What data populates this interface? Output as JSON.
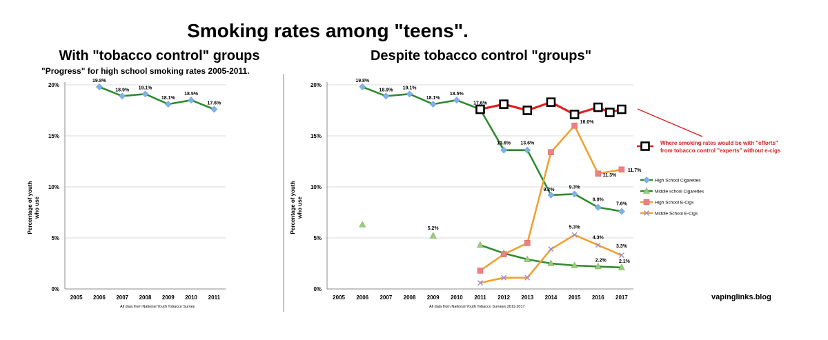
{
  "page": {
    "title": "Smoking rates among \"teens\".",
    "left_heading": "With \"tobacco control\" groups",
    "right_heading": "Despite tobacco control \"groups\"",
    "watermark": "vapinglinks.blog",
    "divider_color": "#999999"
  },
  "chart_data": [
    {
      "type": "line",
      "title": "\"Progress\" for high school smoking rates 2005-2011.",
      "ylabel": "Percentage of youth who use",
      "ylabel_lines": [
        "Percentage of youth",
        "who use"
      ],
      "xlabel": "",
      "source_note": "All data from  National Youth Tobacco Survey",
      "categories": [
        "2005",
        "2006",
        "2007",
        "2008",
        "2009",
        "2010",
        "2011"
      ],
      "y_ticks": [
        "0%",
        "5%",
        "10%",
        "15%",
        "20%"
      ],
      "ylim": [
        0,
        20
      ],
      "grid": true,
      "legend": "none",
      "series": [
        {
          "color": "#2e8b2e",
          "marker": "diamond",
          "marker_color": "#7fb2e5",
          "points": [
            {
              "x": "2006",
              "y": 19.8,
              "label": "19.8%"
            },
            {
              "x": "2007",
              "y": 18.9,
              "label": "18.9%"
            },
            {
              "x": "2008",
              "y": 19.1,
              "label": "19.1%"
            },
            {
              "x": "2009",
              "y": 18.1,
              "label": "18.1%"
            },
            {
              "x": "2010",
              "y": 18.5,
              "label": "18.5%"
            },
            {
              "x": "2011",
              "y": 17.6,
              "label": "17.6%"
            }
          ]
        }
      ]
    },
    {
      "type": "line",
      "title": "",
      "ylabel": "Percentage of youth who use",
      "ylabel_lines": [
        "Percentage of youth",
        "who use"
      ],
      "xlabel": "",
      "source_note": "All data from  National Youth Tobacco Surveys 2011-2017",
      "categories": [
        "2005",
        "2006",
        "2007",
        "2008",
        "2009",
        "2010",
        "2011",
        "2012",
        "2013",
        "2014",
        "2015",
        "2016",
        "2017"
      ],
      "y_ticks": [
        "0%",
        "5%",
        "10%",
        "15%",
        "20%"
      ],
      "ylim": [
        0,
        20
      ],
      "grid": true,
      "legend": "right",
      "series": [
        {
          "name": "High School Cigarettes",
          "color": "#2e8b2e",
          "marker": "diamond",
          "marker_color": "#7fb2e5",
          "points": [
            {
              "x": "2006",
              "y": 19.8,
              "label": "19.8%"
            },
            {
              "x": "2007",
              "y": 18.9,
              "label": "18.9%"
            },
            {
              "x": "2008",
              "y": 19.1,
              "label": "19.1%"
            },
            {
              "x": "2009",
              "y": 18.1,
              "label": "18.1%"
            },
            {
              "x": "2010",
              "y": 18.5,
              "label": "18.5%"
            },
            {
              "x": "2011",
              "y": 17.6,
              "label": "17.6%"
            },
            {
              "x": "2012",
              "y": 13.6,
              "label": "13.6%"
            },
            {
              "x": "2013",
              "y": 13.6,
              "label": "13.6%"
            },
            {
              "x": "2014",
              "y": 9.2,
              "label": "9.2%"
            },
            {
              "x": "2015",
              "y": 9.3,
              "label": "9.3%"
            },
            {
              "x": "2016",
              "y": 8.0,
              "label": "8.0%"
            },
            {
              "x": "2017",
              "y": 7.6,
              "label": "7.6%"
            }
          ]
        },
        {
          "name": "Middle school Cigarettes",
          "color": "#2e8b2e",
          "marker": "triangle",
          "marker_color": "#9acd7a",
          "points": [
            {
              "x": "2006",
              "y": 6.3,
              "label": "",
              "connected": false
            },
            {
              "x": "2009",
              "y": 5.2,
              "label": "5.2%",
              "connected": false
            },
            {
              "x": "2011",
              "y": 4.3,
              "label": ""
            },
            {
              "x": "2012",
              "y": 3.5,
              "label": ""
            },
            {
              "x": "2013",
              "y": 2.9,
              "label": ""
            },
            {
              "x": "2014",
              "y": 2.5,
              "label": ""
            },
            {
              "x": "2015",
              "y": 2.3,
              "label": ""
            },
            {
              "x": "2016",
              "y": 2.2,
              "label": "2.2%"
            },
            {
              "x": "2017",
              "y": 2.1,
              "label": "2.1%"
            }
          ]
        },
        {
          "name": "High School E-Cigs",
          "color": "#f0a030",
          "marker": "square",
          "marker_color": "#ee8080",
          "points": [
            {
              "x": "2011",
              "y": 1.8,
              "label": ""
            },
            {
              "x": "2012",
              "y": 3.4,
              "label": ""
            },
            {
              "x": "2013",
              "y": 4.5,
              "label": ""
            },
            {
              "x": "2014",
              "y": 13.4,
              "label": ""
            },
            {
              "x": "2015",
              "y": 16.0,
              "label": "16.0%"
            },
            {
              "x": "2016",
              "y": 11.3,
              "label": "11.3%"
            },
            {
              "x": "2017",
              "y": 11.7,
              "label": "11.7%"
            }
          ]
        },
        {
          "name": "Middle School E-Cigs",
          "color": "#f0a030",
          "marker": "x",
          "marker_color": "#9a8ac8",
          "points": [
            {
              "x": "2011",
              "y": 0.6,
              "label": ""
            },
            {
              "x": "2012",
              "y": 1.1,
              "label": ""
            },
            {
              "x": "2013",
              "y": 1.1,
              "label": ""
            },
            {
              "x": "2014",
              "y": 3.9,
              "label": ""
            },
            {
              "x": "2015",
              "y": 5.3,
              "label": "5.3%"
            },
            {
              "x": "2016",
              "y": 4.3,
              "label": "4.3%"
            },
            {
              "x": "2017",
              "y": 3.3,
              "label": "3.3%"
            }
          ]
        },
        {
          "color": "#e02020",
          "marker": "hollow-square",
          "marker_color": "#000000",
          "overlay": true,
          "points": [
            {
              "x": "2011",
              "y": 17.6,
              "label": ""
            },
            {
              "x": "2012",
              "y": 18.1,
              "label": ""
            },
            {
              "x": "2013",
              "y": 17.5,
              "label": ""
            },
            {
              "x": "2014",
              "y": 18.3,
              "label": ""
            },
            {
              "x": "2015",
              "y": 17.1,
              "label": ""
            },
            {
              "x": "2016",
              "y": 17.8,
              "label": ""
            },
            {
              "x": "2016.5",
              "y": 17.3,
              "label": ""
            },
            {
              "x": "2017",
              "y": 17.6,
              "label": ""
            }
          ]
        }
      ],
      "annotation": {
        "lines": [
          "Where smoking rates would be with \"efforts\"",
          "from tobacco control \"experts\" without e-cigs"
        ],
        "color": "#d42020"
      }
    }
  ]
}
